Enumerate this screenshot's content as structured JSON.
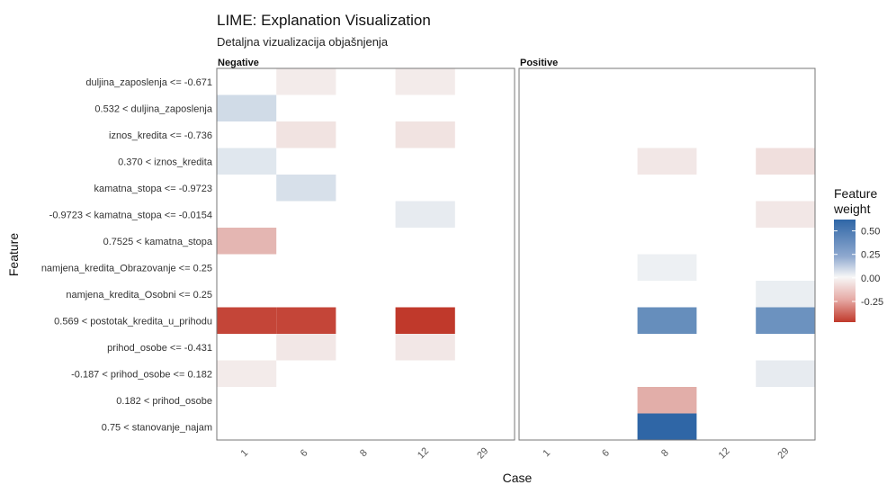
{
  "chart_data": {
    "type": "heatmap",
    "title": "LIME: Explanation Visualization",
    "subtitle": "Detaljna vizualizacija objašnjenja",
    "xlabel": "Case",
    "ylabel": "Feature",
    "facets": [
      "Negative",
      "Positive"
    ],
    "cases": [
      "1",
      "6",
      "8",
      "12",
      "29"
    ],
    "features": [
      "duljina_zaposlenja <= -0.671",
      "0.532 < duljina_zaposlenja",
      "iznos_kredita <= -0.736",
      "0.370 < iznos_kredita",
      "kamatna_stopa <= -0.9723",
      "-0.9723 < kamatna_stopa <= -0.0154",
      "0.7525 < kamatna_stopa",
      "namjena_kredita_Obrazovanje <= 0.25",
      "namjena_kredita_Osobni <= 0.25",
      "0.569 < postotak_kredita_u_prihodu",
      "prihod_osobe <= -0.431",
      "-0.187 < prihod_osobe <= 0.182",
      "0.182 < prihod_osobe",
      "0.75 < stanovanje_najam"
    ],
    "cells": [
      {
        "facet": "Negative",
        "case": "6",
        "feature": "duljina_zaposlenja <= -0.671",
        "weight": -0.03
      },
      {
        "facet": "Negative",
        "case": "12",
        "feature": "duljina_zaposlenja <= -0.671",
        "weight": -0.03
      },
      {
        "facet": "Negative",
        "case": "1",
        "feature": "0.532 < duljina_zaposlenja",
        "weight": 0.12
      },
      {
        "facet": "Negative",
        "case": "6",
        "feature": "iznos_kredita <= -0.736",
        "weight": -0.05
      },
      {
        "facet": "Negative",
        "case": "12",
        "feature": "iznos_kredita <= -0.736",
        "weight": -0.05
      },
      {
        "facet": "Negative",
        "case": "1",
        "feature": "0.370 < iznos_kredita",
        "weight": 0.07
      },
      {
        "facet": "Negative",
        "case": "6",
        "feature": "kamatna_stopa <= -0.9723",
        "weight": 0.1
      },
      {
        "facet": "Negative",
        "case": "12",
        "feature": "-0.9723 < kamatna_stopa <= -0.0154",
        "weight": 0.05
      },
      {
        "facet": "Negative",
        "case": "1",
        "feature": "0.7525 < kamatna_stopa",
        "weight": -0.16
      },
      {
        "facet": "Negative",
        "case": "1",
        "feature": "0.569 < postotak_kredita_u_prihodu",
        "weight": -0.44
      },
      {
        "facet": "Negative",
        "case": "6",
        "feature": "0.569 < postotak_kredita_u_prihodu",
        "weight": -0.44
      },
      {
        "facet": "Negative",
        "case": "12",
        "feature": "0.569 < postotak_kredita_u_prihodu",
        "weight": -0.47
      },
      {
        "facet": "Negative",
        "case": "6",
        "feature": "prihod_osobe <= -0.431",
        "weight": -0.04
      },
      {
        "facet": "Negative",
        "case": "12",
        "feature": "prihod_osobe <= -0.431",
        "weight": -0.04
      },
      {
        "facet": "Negative",
        "case": "1",
        "feature": "-0.187 < prihod_osobe <= 0.182",
        "weight": -0.03
      },
      {
        "facet": "Positive",
        "case": "8",
        "feature": "0.370 < iznos_kredita",
        "weight": -0.04
      },
      {
        "facet": "Positive",
        "case": "29",
        "feature": "0.370 < iznos_kredita",
        "weight": -0.06
      },
      {
        "facet": "Positive",
        "case": "29",
        "feature": "-0.9723 < kamatna_stopa <= -0.0154",
        "weight": -0.04
      },
      {
        "facet": "Positive",
        "case": "8",
        "feature": "namjena_kredita_Obrazovanje <= 0.25",
        "weight": 0.03
      },
      {
        "facet": "Positive",
        "case": "29",
        "feature": "namjena_kredita_Osobni <= 0.25",
        "weight": 0.04
      },
      {
        "facet": "Positive",
        "case": "8",
        "feature": "0.569 < postotak_kredita_u_prihodu",
        "weight": 0.45
      },
      {
        "facet": "Positive",
        "case": "29",
        "feature": "0.569 < postotak_kredita_u_prihodu",
        "weight": 0.43
      },
      {
        "facet": "Positive",
        "case": "29",
        "feature": "-0.187 < prihod_osobe <= 0.182",
        "weight": 0.05
      },
      {
        "facet": "Positive",
        "case": "8",
        "feature": "0.182 < prihod_osobe",
        "weight": -0.18
      },
      {
        "facet": "Positive",
        "case": "8",
        "feature": "0.75 < stanovanje_najam",
        "weight": 0.62
      }
    ],
    "legend": {
      "title_lines": [
        "Feature",
        "weight"
      ],
      "ticks": [
        0.5,
        0.25,
        0.0,
        -0.25
      ],
      "tick_labels": [
        "0.50",
        "0.25",
        "0.00",
        "-0.25"
      ],
      "range": [
        -0.47,
        0.62
      ],
      "position": "right"
    },
    "colors": {
      "negative": "#c0392b",
      "zero": "#f7f7f7",
      "positive": "#2f66a6",
      "panel_border": "#777777"
    }
  }
}
